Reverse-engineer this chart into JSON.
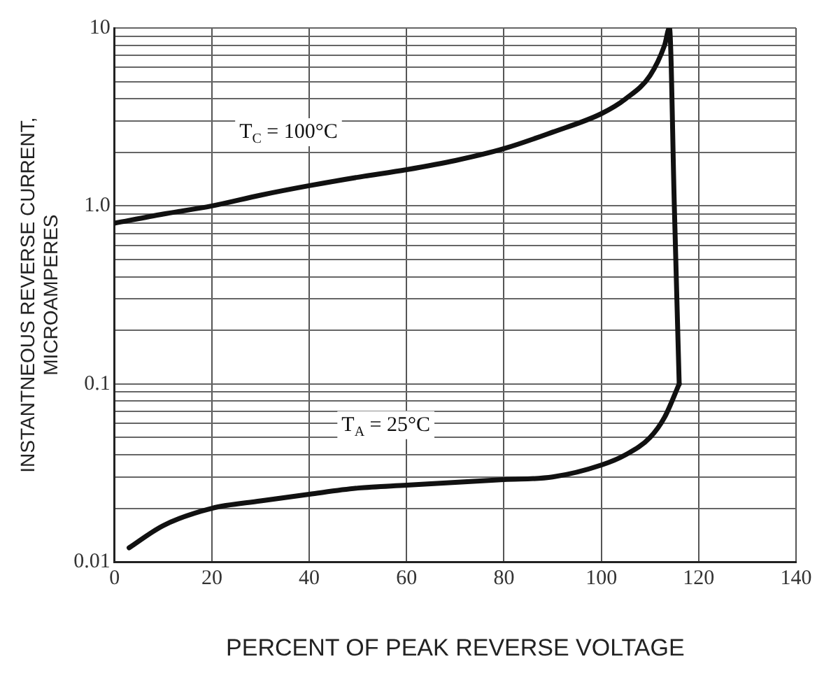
{
  "chart_data": {
    "type": "line",
    "xlabel": "PERCENT OF PEAK REVERSE VOLTAGE",
    "ylabel": "INSTANTNEOUS REVERSE CURRENT,\nMICROAMPERES",
    "log": "y",
    "grid": true,
    "legend": false,
    "marker": "none",
    "line_style": "solid",
    "xlim": [
      0,
      140
    ],
    "xticks": [
      0,
      20,
      40,
      60,
      80,
      100,
      120,
      140
    ],
    "ylim": [
      0.01,
      10
    ],
    "yticks": [
      0.01,
      {
        "value": 0.02,
        "label": null
      },
      {
        "value": 0.03,
        "label": null
      },
      {
        "value": 0.04,
        "label": null
      },
      {
        "value": 0.05,
        "label": null
      },
      {
        "value": 0.06,
        "label": null
      },
      {
        "value": 0.07,
        "label": null
      },
      {
        "value": 0.08,
        "label": null
      },
      {
        "value": 0.09,
        "label": null
      },
      0.1,
      {
        "value": 0.2,
        "label": null
      },
      {
        "value": 0.3,
        "label": null
      },
      {
        "value": 0.4,
        "label": null
      },
      {
        "value": 0.5,
        "label": null
      },
      {
        "value": 0.6,
        "label": null
      },
      {
        "value": 0.7,
        "label": null
      },
      {
        "value": 0.8,
        "label": null
      },
      {
        "value": 0.9,
        "label": null
      },
      {
        "value": 1,
        "label": "1.0"
      },
      {
        "value": 2,
        "label": null
      },
      {
        "value": 3,
        "label": null
      },
      {
        "value": 4,
        "label": null
      },
      {
        "value": 5,
        "label": null
      },
      {
        "value": 6,
        "label": null
      },
      {
        "value": 7,
        "label": null
      },
      {
        "value": 8,
        "label": null
      },
      {
        "value": 9,
        "label": null
      },
      10
    ],
    "series": [
      {
        "color": "#111111",
        "x": [
          0,
          10,
          20,
          30,
          40,
          50,
          60,
          70,
          80,
          90,
          100,
          105,
          110,
          113,
          114,
          115,
          116
        ],
        "values": [
          0.8,
          0.9,
          1.0,
          1.15,
          1.3,
          1.45,
          1.6,
          1.8,
          2.1,
          2.6,
          3.3,
          4.0,
          5.4,
          8,
          10,
          1.0,
          0.1
        ]
      },
      {
        "color": "#111111",
        "x": [
          3,
          10,
          20,
          30,
          40,
          50,
          60,
          70,
          80,
          90,
          100,
          105,
          110,
          113,
          116
        ],
        "values": [
          0.012,
          0.016,
          0.02,
          0.022,
          0.024,
          0.026,
          0.027,
          0.028,
          0.029,
          0.03,
          0.035,
          0.04,
          0.05,
          0.065,
          0.1
        ]
      }
    ],
    "annotations": [
      "T$_{C}$ = 100°C",
      "T$_{A}$ = 25°C"
    ]
  }
}
